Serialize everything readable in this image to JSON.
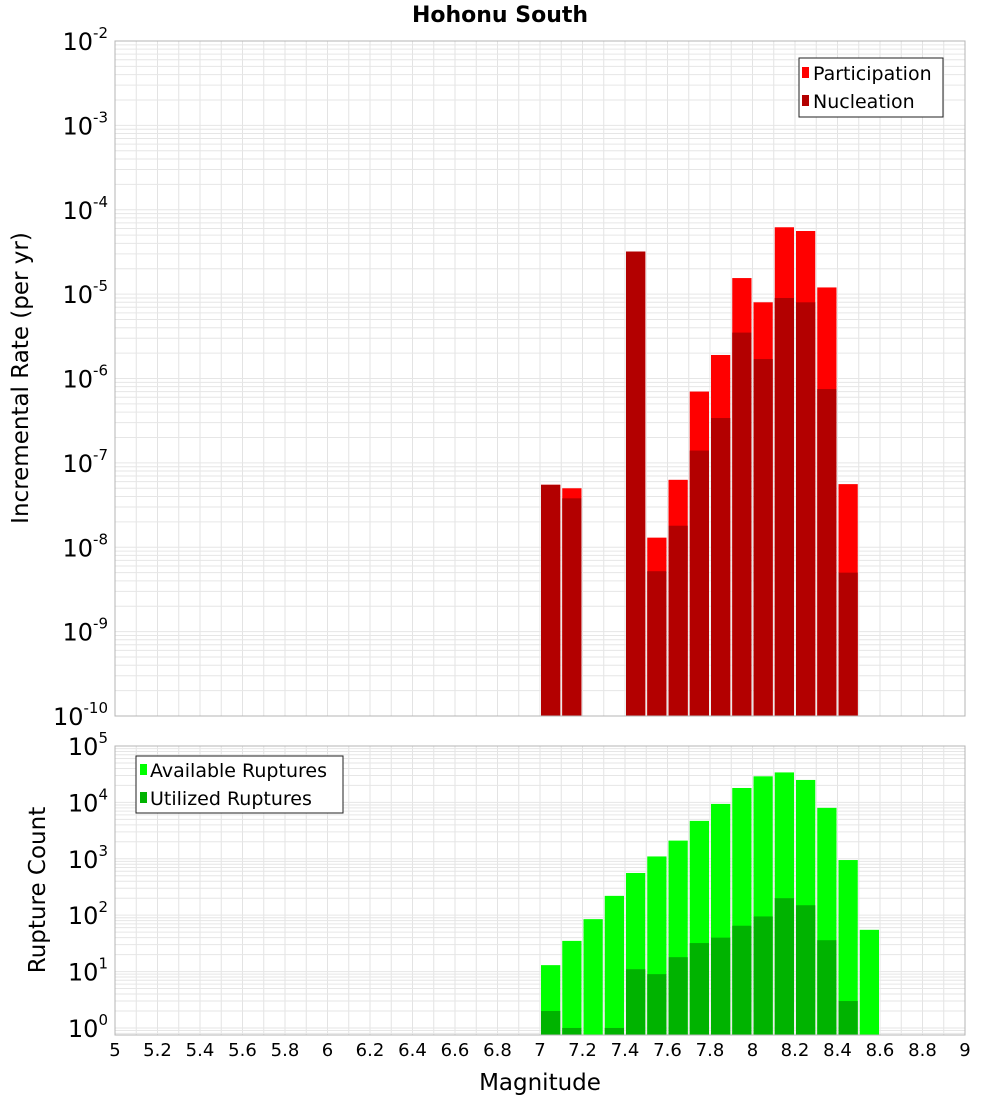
{
  "chart_data": [
    {
      "type": "bar",
      "title": "Hohonu South",
      "xlabel": "",
      "ylabel": "Incremental Rate (per yr)",
      "yscale": "log",
      "ylim": [
        1e-10,
        0.01
      ],
      "xlim": [
        5,
        9
      ],
      "y_ticks": [
        {
          "base": "10",
          "exp": "-10"
        },
        {
          "base": "10",
          "exp": "-9"
        },
        {
          "base": "10",
          "exp": "-8"
        },
        {
          "base": "10",
          "exp": "-7"
        },
        {
          "base": "10",
          "exp": "-6"
        },
        {
          "base": "10",
          "exp": "-5"
        },
        {
          "base": "10",
          "exp": "-4"
        },
        {
          "base": "10",
          "exp": "-3"
        },
        {
          "base": "10",
          "exp": "-2"
        }
      ],
      "legend": "top-right",
      "grid": true,
      "x": [
        7.05,
        7.15,
        7.45,
        7.55,
        7.65,
        7.75,
        7.85,
        7.95,
        8.05,
        8.15,
        8.25,
        8.35,
        8.45
      ],
      "series": [
        {
          "name": "Participation",
          "color": "#ff0000",
          "values": [
            5.5e-08,
            5e-08,
            3.2e-05,
            1.3e-08,
            6.3e-08,
            7e-07,
            1.9e-06,
            1.55e-05,
            8e-06,
            6.2e-05,
            5.6e-05,
            1.2e-05,
            5.6e-08
          ]
        },
        {
          "name": "Nucleation",
          "color": "#b30000",
          "values": [
            5.5e-08,
            3.8e-08,
            3.2e-05,
            5.2e-09,
            1.8e-08,
            1.4e-07,
            3.4e-07,
            3.5e-06,
            1.7e-06,
            9e-06,
            8e-06,
            7.5e-07,
            5e-09
          ]
        }
      ]
    },
    {
      "type": "bar",
      "title": "",
      "xlabel": "Magnitude",
      "ylabel": "Rupture Count",
      "yscale": "log",
      "ylim": [
        0.75,
        100000
      ],
      "xlim": [
        5,
        9
      ],
      "y_ticks": [
        {
          "base": "10",
          "exp": "0"
        },
        {
          "base": "10",
          "exp": "1"
        },
        {
          "base": "10",
          "exp": "2"
        },
        {
          "base": "10",
          "exp": "3"
        },
        {
          "base": "10",
          "exp": "4"
        },
        {
          "base": "10",
          "exp": "5"
        }
      ],
      "x_ticks": [
        "5",
        "5.2",
        "5.4",
        "5.6",
        "5.8",
        "6",
        "6.2",
        "6.4",
        "6.6",
        "6.8",
        "7",
        "7.2",
        "7.4",
        "7.6",
        "7.8",
        "8",
        "8.2",
        "8.4",
        "8.6",
        "8.8",
        "9"
      ],
      "legend": "top-left",
      "grid": true,
      "x": [
        7.05,
        7.15,
        7.25,
        7.35,
        7.45,
        7.55,
        7.65,
        7.75,
        7.85,
        7.95,
        8.05,
        8.15,
        8.25,
        8.35,
        8.45,
        8.55
      ],
      "series": [
        {
          "name": "Available Ruptures",
          "color": "#00ff00",
          "values": [
            13,
            35,
            85,
            220,
            560,
            1100,
            2100,
            4700,
            9400,
            18000,
            29000,
            34000,
            25000,
            8000,
            950,
            55
          ]
        },
        {
          "name": "Utilized Ruptures",
          "color": "#00b300",
          "values": [
            2,
            1,
            0,
            1,
            11,
            9,
            18,
            32,
            40,
            65,
            95,
            200,
            150,
            36,
            3,
            0
          ]
        }
      ]
    }
  ]
}
